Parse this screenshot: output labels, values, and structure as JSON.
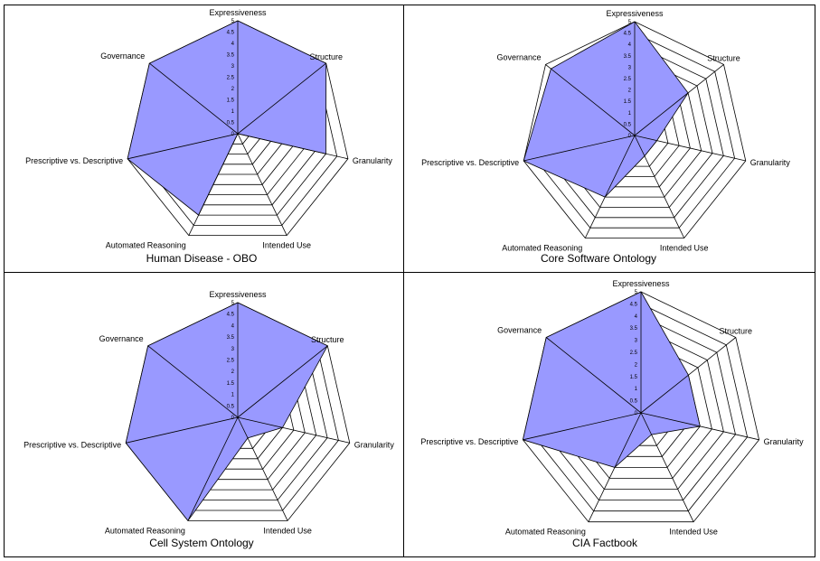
{
  "chart_data": [
    {
      "type": "radar",
      "title": "Human Disease - OBO",
      "axes": [
        "Expressiveness",
        "Structure",
        "Granularity",
        "Intended Use",
        "Automated Reasoning",
        "Prescriptive vs. Descriptive",
        "Governance"
      ],
      "ticks": [
        "0",
        "0.5",
        "1",
        "1.5",
        "2",
        "2.5",
        "3",
        "3.5",
        "4",
        "4.5",
        "5"
      ],
      "range": [
        0,
        5
      ],
      "values": [
        5,
        5,
        4,
        0,
        4,
        5,
        5
      ],
      "fill_color": "#9999ff"
    },
    {
      "type": "radar",
      "title": "Core Software Ontology",
      "axes": [
        "Expressiveness",
        "Structure",
        "Granularity",
        "Intended Use",
        "Automated Reasoning",
        "Prescriptive vs. Descriptive",
        "Governance"
      ],
      "ticks": [
        "0",
        "0.5",
        "1",
        "1.5",
        "2",
        "2.5",
        "3",
        "3.5",
        "4",
        "4.5",
        "5"
      ],
      "range": [
        0,
        5
      ],
      "values": [
        5,
        3,
        1,
        1,
        3,
        5,
        4.7
      ],
      "fill_color": "#9999ff"
    },
    {
      "type": "radar",
      "title": "Cell System Ontology",
      "axes": [
        "Expressiveness",
        "Structure",
        "Granularity",
        "Intended Use",
        "Automated Reasoning",
        "Prescriptive vs. Descriptive",
        "Governance"
      ],
      "ticks": [
        "0",
        "0.5",
        "1",
        "1.5",
        "2",
        "2.5",
        "3",
        "3.5",
        "4",
        "4.5",
        "5"
      ],
      "range": [
        0,
        5
      ],
      "values": [
        5,
        5,
        2,
        1,
        5,
        5,
        5
      ],
      "fill_color": "#9999ff"
    },
    {
      "type": "radar",
      "title": "CIA Factbook",
      "axes": [
        "Expressiveness",
        "Structure",
        "Granularity",
        "Intended Use",
        "Automated Reasoning",
        "Prescriptive vs. Descriptive",
        "Governance"
      ],
      "ticks": [
        "0",
        "0.5",
        "1",
        "1.5",
        "2",
        "2.5",
        "3",
        "3.5",
        "4",
        "4.5",
        "5"
      ],
      "range": [
        0,
        5
      ],
      "values": [
        5,
        2.5,
        2.5,
        1,
        2.5,
        5,
        5
      ],
      "fill_color": "#9999ff"
    }
  ]
}
